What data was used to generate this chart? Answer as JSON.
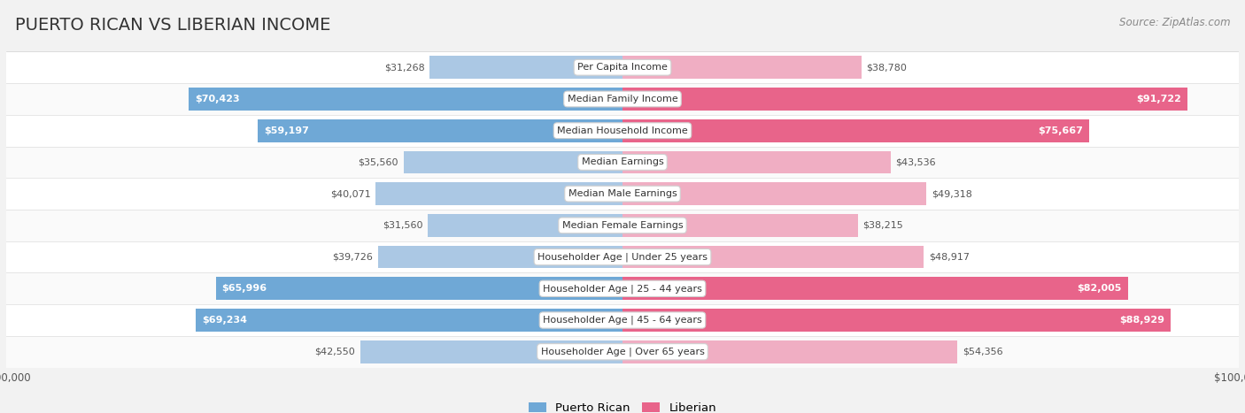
{
  "title": "PUERTO RICAN VS LIBERIAN INCOME",
  "source": "Source: ZipAtlas.com",
  "categories": [
    "Per Capita Income",
    "Median Family Income",
    "Median Household Income",
    "Median Earnings",
    "Median Male Earnings",
    "Median Female Earnings",
    "Householder Age | Under 25 years",
    "Householder Age | 25 - 44 years",
    "Householder Age | 45 - 64 years",
    "Householder Age | Over 65 years"
  ],
  "puerto_rican": [
    31268,
    70423,
    59197,
    35560,
    40071,
    31560,
    39726,
    65996,
    69234,
    42550
  ],
  "liberian": [
    38780,
    91722,
    75667,
    43536,
    49318,
    38215,
    48917,
    82005,
    88929,
    54356
  ],
  "max_val": 100000,
  "pr_color_light": "#abc8e4",
  "lib_color_light": "#f0aec3",
  "pr_color_solid": "#6fa8d6",
  "lib_color_solid": "#e8648a",
  "bg_color": "#f2f2f2",
  "row_bg_light": "#fafafa",
  "row_bg_white": "#ffffff",
  "title_fontsize": 14,
  "label_fontsize": 8.0,
  "category_fontsize": 8.0,
  "axis_fontsize": 8.5,
  "legend_fontsize": 9.5,
  "source_fontsize": 8.5,
  "solid_threshold": 55000
}
